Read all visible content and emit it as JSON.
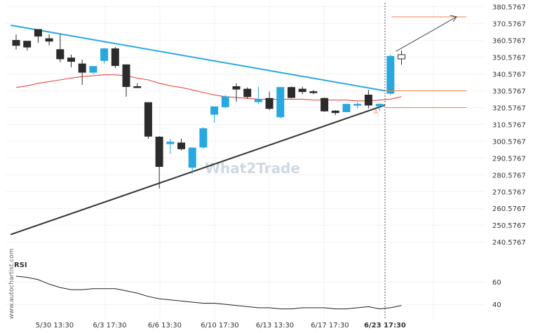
{
  "chart_data": {
    "type": "candlestick",
    "y_axis": {
      "ticks": [
        "380.5767",
        "370.5767",
        "360.5767",
        "350.5767",
        "340.5767",
        "330.5767",
        "320.5767",
        "310.5767",
        "300.5767",
        "290.5767",
        "280.5767",
        "270.5767",
        "260.5767",
        "250.5767",
        "240.5767"
      ],
      "range": [
        236.5,
        382.0
      ]
    },
    "x_axis": {
      "labels": [
        {
          "text": "5/30 13:30",
          "index": 3.5
        },
        {
          "text": "6/3 17:30",
          "index": 8.5
        },
        {
          "text": "6/6 13:30",
          "index": 13.5
        },
        {
          "text": "6/10 17:30",
          "index": 18.5
        },
        {
          "text": "6/13 13:30",
          "index": 23.5
        },
        {
          "text": "6/17 17:30",
          "index": 28.5
        },
        {
          "text": "6/23 17:30",
          "index": 33.5,
          "bold": true
        }
      ]
    },
    "candles": [
      {
        "o": 357.5,
        "h": 364.0,
        "l": 355.0,
        "c": 360.5,
        "color": "dark"
      },
      {
        "o": 356.5,
        "h": 360.0,
        "l": 354.5,
        "c": 360.0,
        "color": "dark"
      },
      {
        "o": 363.0,
        "h": 366.0,
        "l": 359.0,
        "c": 367.0,
        "color": "dark"
      },
      {
        "o": 361.5,
        "h": 364.0,
        "l": 357.5,
        "c": 360.0,
        "color": "dark"
      },
      {
        "o": 355.0,
        "h": 364.0,
        "l": 347.5,
        "c": 349.5,
        "color": "dark"
      },
      {
        "o": 350.0,
        "h": 352.0,
        "l": 344.5,
        "c": 348.0,
        "color": "dark"
      },
      {
        "o": 346.5,
        "h": 349.0,
        "l": 334.0,
        "c": 341.5,
        "color": "dark"
      },
      {
        "o": 341.5,
        "h": 345.0,
        "l": 340.5,
        "c": 345.0,
        "color": "blue"
      },
      {
        "o": 348.5,
        "h": 356.0,
        "l": 346.5,
        "c": 355.5,
        "color": "blue"
      },
      {
        "o": 355.5,
        "h": 356.5,
        "l": 344.0,
        "c": 345.5,
        "color": "dark"
      },
      {
        "o": 346.0,
        "h": 346.0,
        "l": 327.0,
        "c": 333.0,
        "color": "dark"
      },
      {
        "o": 333.0,
        "h": 335.0,
        "l": 332.5,
        "c": 333.0,
        "color": "dark"
      },
      {
        "o": 323.5,
        "h": 323.5,
        "l": 302.0,
        "c": 303.5,
        "color": "dark"
      },
      {
        "o": 303.0,
        "h": 303.5,
        "l": 272.5,
        "c": 285.5,
        "color": "dark"
      },
      {
        "o": 300.0,
        "h": 302.0,
        "l": 293.0,
        "c": 299.0,
        "color": "blue"
      },
      {
        "o": 299.5,
        "h": 302.0,
        "l": 295.0,
        "c": 296.0,
        "color": "dark"
      },
      {
        "o": 285.0,
        "h": 297.0,
        "l": 281.0,
        "c": 296.5,
        "color": "blue"
      },
      {
        "o": 297.0,
        "h": 309.0,
        "l": 296.0,
        "c": 308.0,
        "color": "blue"
      },
      {
        "o": 316.5,
        "h": 320.0,
        "l": 311.5,
        "c": 321.0,
        "color": "blue"
      },
      {
        "o": 321.0,
        "h": 328.0,
        "l": 320.0,
        "c": 327.0,
        "color": "blue"
      },
      {
        "o": 333.0,
        "h": 335.0,
        "l": 324.0,
        "c": 331.5,
        "color": "dark"
      },
      {
        "o": 331.5,
        "h": 332.5,
        "l": 326.0,
        "c": 327.0,
        "color": "dark"
      },
      {
        "o": 324.0,
        "h": 333.0,
        "l": 322.5,
        "c": 325.5,
        "color": "blue"
      },
      {
        "o": 326.0,
        "h": 330.0,
        "l": 319.0,
        "c": 320.0,
        "color": "dark"
      },
      {
        "o": 315.0,
        "h": 332.5,
        "l": 314.0,
        "c": 332.5,
        "color": "blue"
      },
      {
        "o": 332.5,
        "h": 333.0,
        "l": 326.0,
        "c": 326.5,
        "color": "dark"
      },
      {
        "o": 331.5,
        "h": 333.0,
        "l": 328.5,
        "c": 330.0,
        "color": "dark"
      },
      {
        "o": 330.0,
        "h": 331.0,
        "l": 328.5,
        "c": 330.0,
        "color": "dark"
      },
      {
        "o": 326.0,
        "h": 326.5,
        "l": 318.0,
        "c": 318.5,
        "color": "dark"
      },
      {
        "o": 318.5,
        "h": 319.0,
        "l": 316.0,
        "c": 317.5,
        "color": "dark"
      },
      {
        "o": 318.0,
        "h": 322.5,
        "l": 318.0,
        "c": 322.5,
        "color": "blue"
      },
      {
        "o": 322.5,
        "h": 324.0,
        "l": 320.0,
        "c": 322.5,
        "color": "blue"
      },
      {
        "o": 328.0,
        "h": 331.0,
        "l": 320.0,
        "c": 322.0,
        "color": "dark"
      },
      {
        "o": 321.5,
        "h": 323.0,
        "l": 318.5,
        "c": 322.5,
        "color": "blue"
      },
      {
        "o": 329.0,
        "h": 352.0,
        "l": 328.0,
        "c": 351.0,
        "color": "blue"
      },
      {
        "o": 349.5,
        "h": 354.5,
        "l": 346.0,
        "c": 352.0,
        "color": "open"
      }
    ],
    "moving_average": [
      332.5,
      333.5,
      335.0,
      336.0,
      337.0,
      338.0,
      339.0,
      339.5,
      340.0,
      340.0,
      339.5,
      338.0,
      337.0,
      335.0,
      333.5,
      332.5,
      331.0,
      329.5,
      328.0,
      327.0,
      326.5,
      326.0,
      325.5,
      325.5,
      325.5,
      325.5,
      325.5,
      325.0,
      325.0,
      325.0,
      325.0,
      324.5,
      324.5,
      325.0,
      325.5,
      327.0
    ],
    "trendlines": [
      {
        "name": "resistance",
        "from": {
          "index": -0.5,
          "value": 369.5
        },
        "to": {
          "index": 33.5,
          "value": 330.5
        },
        "color": "#29a8e0"
      },
      {
        "name": "support",
        "from": {
          "index": -0.5,
          "value": 245.0
        },
        "to": {
          "index": 33.5,
          "value": 322.0
        },
        "color": "#333333"
      }
    ],
    "levels": [
      {
        "value": 330.5,
        "from_index": 33.5,
        "color": "#f07f4a"
      },
      {
        "value": 320.5,
        "from_index": 33.5,
        "color": "#f07f4a"
      },
      {
        "value": 374.5,
        "from_index": 34.1,
        "color": "#f07f4a"
      }
    ],
    "projection_arrow": {
      "from": {
        "index": 34.5,
        "value": 354.0
      },
      "to": {
        "index": 40.0,
        "value": 374.5
      }
    },
    "marker_label": "A",
    "marker_index": 33.5,
    "rsi": {
      "label": "RSI",
      "ticks": [
        "60",
        "40"
      ],
      "range": [
        32,
        75
      ],
      "values": [
        65,
        64,
        62,
        58,
        55,
        53,
        53,
        54,
        54,
        54,
        52,
        50,
        47,
        45,
        44,
        43,
        42,
        41,
        41,
        40,
        39,
        38,
        37,
        37,
        36,
        36,
        37,
        37,
        37,
        36,
        36,
        37,
        38,
        36,
        37,
        39
      ]
    },
    "watermark": "What2Trade",
    "side_text": "www.autochartist.com"
  }
}
